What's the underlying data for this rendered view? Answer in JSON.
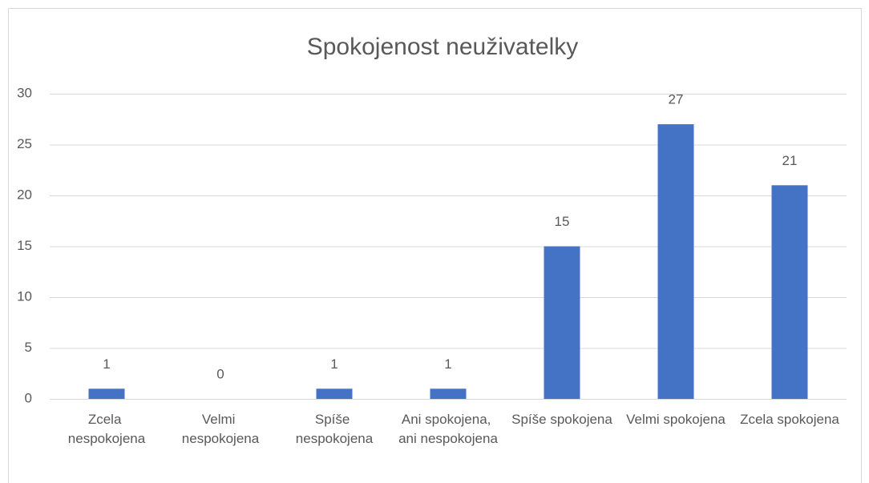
{
  "chart_data": {
    "type": "bar",
    "title": "Spokojenost neuživatelky",
    "categories": [
      "Zcela nespokojena",
      "Velmi nespokojena",
      "Spíše nespokojena",
      "Ani spokojena, ani nespokojena",
      "Spíše spokojena",
      "Velmi spokojena",
      "Zcela spokojena"
    ],
    "values": [
      1,
      0,
      1,
      1,
      15,
      27,
      21
    ],
    "color": "#4472c4",
    "ylim": [
      0,
      30
    ],
    "yticks": [
      0,
      5,
      10,
      15,
      20,
      25,
      30
    ],
    "grid": true
  }
}
